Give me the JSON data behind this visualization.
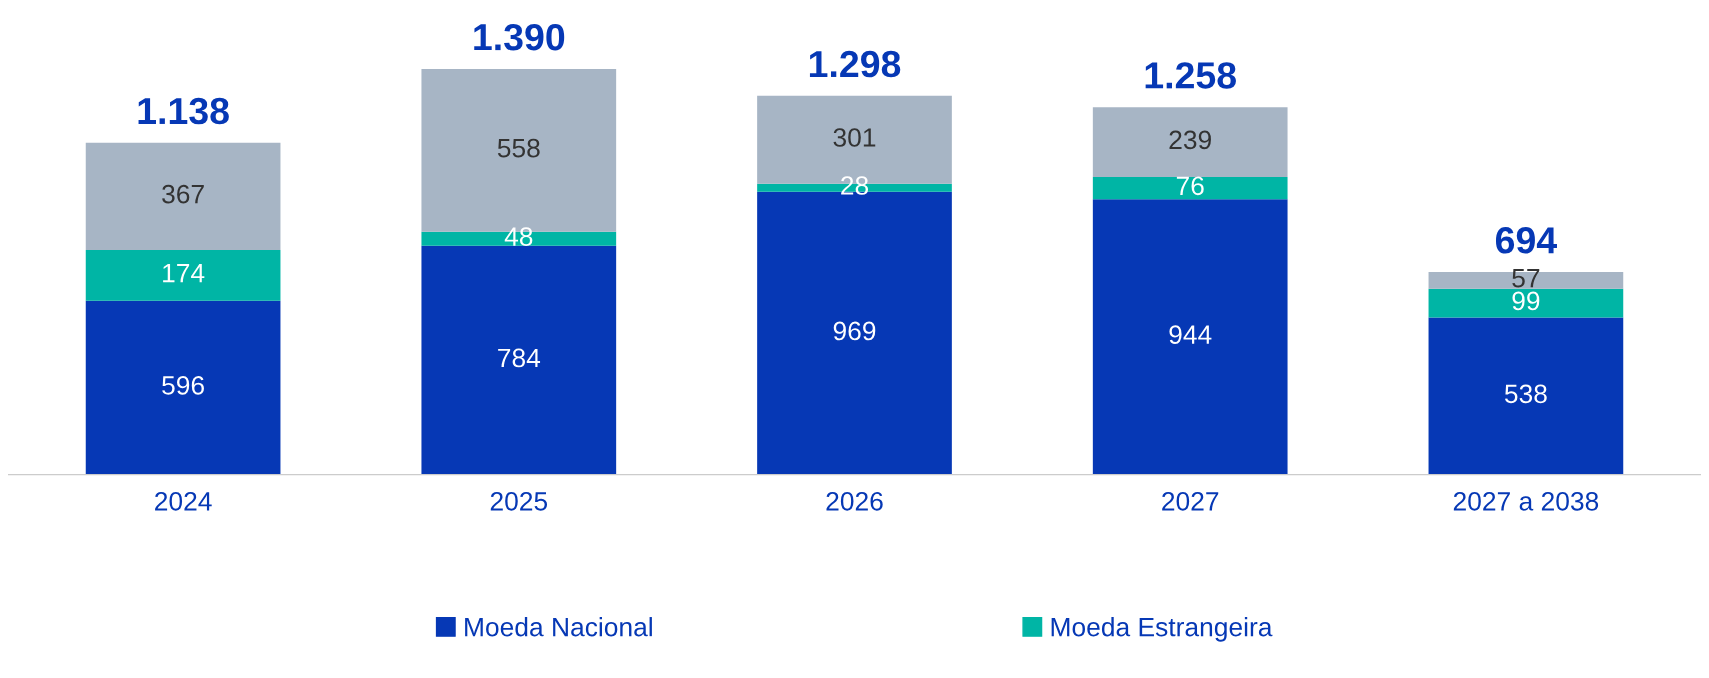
{
  "chart_data": {
    "type": "bar",
    "stacked": true,
    "data_labels": true,
    "legend": "bottom",
    "grid": false,
    "categories": [
      "2024",
      "2025",
      "2026",
      "2027",
      "2027 a 2038"
    ],
    "series": [
      {
        "name": "Moeda Nacional",
        "color": "#0638b5",
        "values": [
          596,
          784,
          969,
          944,
          538
        ]
      },
      {
        "name": "Moeda Estrangeira",
        "color": "#00b5a5",
        "values": [
          174,
          48,
          28,
          76,
          99
        ]
      },
      {
        "color": "#a7b5c5",
        "values": [
          367,
          558,
          301,
          239,
          57
        ]
      }
    ],
    "totals": [
      "1.138",
      "1.390",
      "1.298",
      "1.258",
      "694"
    ]
  }
}
